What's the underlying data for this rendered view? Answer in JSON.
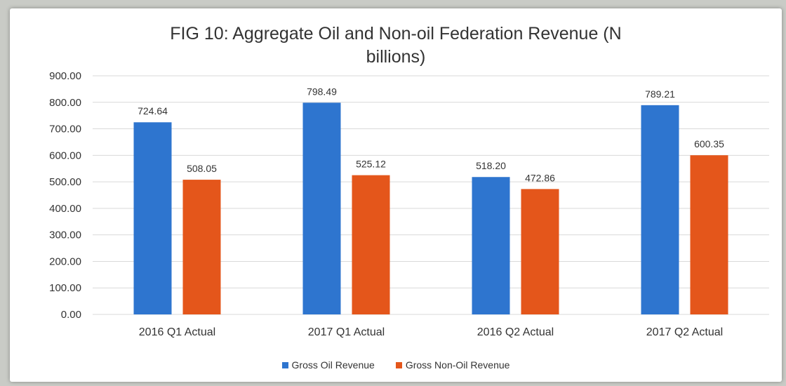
{
  "chart_data": {
    "type": "bar",
    "title_lines": [
      "FIG 10: Aggregate Oil and Non-oil Federation Revenue (N",
      "billions)"
    ],
    "categories": [
      "2016 Q1 Actual",
      "2017 Q1 Actual",
      "2016 Q2 Actual",
      "2017 Q2 Actual"
    ],
    "series": [
      {
        "name": "Gross Oil Revenue",
        "color": "#2e75cf",
        "values": [
          724.64,
          798.49,
          518.2,
          789.21
        ],
        "labels": [
          "724.64",
          "798.49",
          "518.20",
          "789.21"
        ]
      },
      {
        "name": "Gross Non-Oil Revenue",
        "color": "#e4561b",
        "values": [
          508.05,
          525.12,
          472.86,
          600.35
        ],
        "labels": [
          "508.05",
          "525.12",
          "472.86",
          "600.35"
        ]
      }
    ],
    "ylim": [
      0,
      900
    ],
    "yticks": [
      0,
      100,
      200,
      300,
      400,
      500,
      600,
      700,
      800,
      900
    ],
    "ytick_labels": [
      "0.00",
      "100.00",
      "200.00",
      "300.00",
      "400.00",
      "500.00",
      "600.00",
      "700.00",
      "800.00",
      "900.00"
    ],
    "grid": true,
    "legend_position": "bottom"
  }
}
